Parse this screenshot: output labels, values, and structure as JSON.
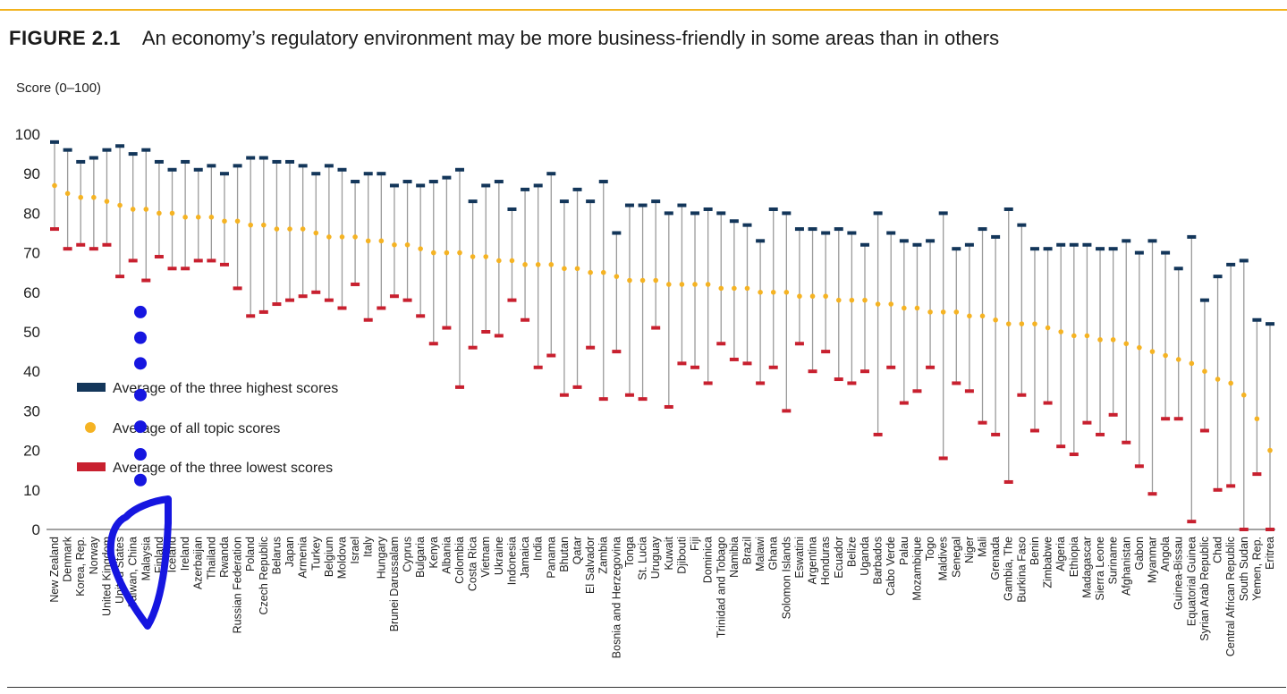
{
  "figure": {
    "label": "FIGURE 2.1",
    "title": "An economy’s regulatory environment may be more business-friendly in some areas than in others"
  },
  "colors": {
    "high": "#13365a",
    "avg": "#f5b323",
    "low": "#c8202f",
    "connector": "#9a9a9a",
    "annotation": "#1616e0"
  },
  "chart_data": {
    "type": "scatter",
    "title": "An economy’s regulatory environment may be more business-friendly in some areas than in others",
    "xlabel": "",
    "ylabel": "Score (0–100)",
    "ylim": [
      0,
      100
    ],
    "yticks": [
      0,
      10,
      20,
      30,
      40,
      50,
      60,
      70,
      80,
      90,
      100
    ],
    "grid": false,
    "legend": {
      "position": "left",
      "entries": [
        {
          "key": "high",
          "label": "Average of the three highest scores"
        },
        {
          "key": "avg",
          "label": "Average of all topic scores"
        },
        {
          "key": "low",
          "label": "Average of the three lowest scores"
        }
      ]
    },
    "categories": [
      "New Zealand",
      "Denmark",
      "Korea, Rep.",
      "Norway",
      "United Kingdom",
      "United States",
      "Taiwan, China",
      "Malaysia",
      "Finland",
      "Iceland",
      "Ireland",
      "Azerbaijan",
      "Thailand",
      "Rwanda",
      "Russian Federation",
      "Poland",
      "Czech Republic",
      "Belarus",
      "Japan",
      "Armenia",
      "Turkey",
      "Belgium",
      "Moldova",
      "Israel",
      "Italy",
      "Hungary",
      "Brunei Darussalam",
      "Cyprus",
      "Bulgaria",
      "Kenya",
      "Albania",
      "Colombia",
      "Costa Rica",
      "Vietnam",
      "Ukraine",
      "Indonesia",
      "Jamaica",
      "India",
      "Panama",
      "Bhutan",
      "Qatar",
      "El Salvador",
      "Zambia",
      "Bosnia and Herzegovina",
      "Tonga",
      "St. Lucia",
      "Uruguay",
      "Kuwait",
      "Djibouti",
      "Fiji",
      "Dominica",
      "Trinidad and Tobago",
      "Namibia",
      "Brazil",
      "Malawi",
      "Ghana",
      "Solomon Islands",
      "Eswatini",
      "Argentina",
      "Honduras",
      "Ecuador",
      "Belize",
      "Uganda",
      "Barbados",
      "Cabo Verde",
      "Palau",
      "Mozambique",
      "Togo",
      "Maldives",
      "Senegal",
      "Niger",
      "Mali",
      "Grenada",
      "Gambia, The",
      "Burkina Faso",
      "Benin",
      "Zimbabwe",
      "Algeria",
      "Ethiopia",
      "Madagascar",
      "Sierra Leone",
      "Suriname",
      "Afghanistan",
      "Gabon",
      "Myanmar",
      "Angola",
      "Guinea-Bissau",
      "Equatorial Guinea",
      "Syrian Arab Republic",
      "Chad",
      "Central African Republic",
      "South Sudan",
      "Yemen, Rep.",
      "Eritrea"
    ],
    "series": [
      {
        "name": "Average of the three highest scores",
        "key": "high",
        "values": [
          98,
          96,
          93,
          94,
          96,
          97,
          95,
          96,
          93,
          91,
          93,
          91,
          92,
          90,
          92,
          94,
          94,
          93,
          93,
          92,
          90,
          92,
          91,
          88,
          90,
          90,
          87,
          88,
          87,
          88,
          89,
          91,
          83,
          87,
          88,
          81,
          86,
          87,
          90,
          83,
          86,
          83,
          88,
          75,
          82,
          82,
          83,
          80,
          82,
          80,
          81,
          80,
          78,
          77,
          73,
          81,
          80,
          76,
          76,
          75,
          76,
          75,
          72,
          80,
          75,
          73,
          72,
          73,
          80,
          71,
          72,
          76,
          74,
          81,
          77,
          71,
          71,
          72,
          72,
          72,
          71,
          71,
          73,
          70,
          73,
          70,
          66,
          74,
          58,
          64,
          67,
          68,
          53,
          52
        ]
      },
      {
        "name": "Average of all topic scores",
        "key": "avg",
        "values": [
          87,
          85,
          84,
          84,
          83,
          82,
          81,
          81,
          80,
          80,
          79,
          79,
          79,
          78,
          78,
          77,
          77,
          76,
          76,
          76,
          75,
          74,
          74,
          74,
          73,
          73,
          72,
          72,
          71,
          70,
          70,
          70,
          69,
          69,
          68,
          68,
          67,
          67,
          67,
          66,
          66,
          65,
          65,
          64,
          63,
          63,
          63,
          62,
          62,
          62,
          62,
          61,
          61,
          61,
          60,
          60,
          60,
          59,
          59,
          59,
          58,
          58,
          58,
          57,
          57,
          56,
          56,
          55,
          55,
          55,
          54,
          54,
          53,
          52,
          52,
          52,
          51,
          50,
          49,
          49,
          48,
          48,
          47,
          46,
          45,
          44,
          43,
          42,
          40,
          38,
          37,
          34,
          28,
          20
        ]
      },
      {
        "name": "Average of the three lowest scores",
        "key": "low",
        "values": [
          76,
          71,
          72,
          71,
          72,
          64,
          68,
          63,
          69,
          66,
          66,
          68,
          68,
          67,
          61,
          54,
          55,
          57,
          58,
          59,
          60,
          58,
          56,
          62,
          53,
          56,
          59,
          58,
          54,
          47,
          51,
          36,
          46,
          50,
          49,
          58,
          53,
          41,
          44,
          34,
          36,
          46,
          33,
          45,
          34,
          33,
          51,
          31,
          42,
          41,
          37,
          47,
          43,
          42,
          37,
          41,
          30,
          47,
          40,
          45,
          38,
          37,
          40,
          24,
          41,
          32,
          35,
          41,
          18,
          37,
          35,
          27,
          24,
          12,
          34,
          25,
          32,
          21,
          19,
          27,
          24,
          29,
          22,
          16,
          9,
          28,
          28,
          2,
          25,
          10,
          11,
          0,
          14,
          0
        ]
      }
    ],
    "annotation_dots": [
      55,
      48.5,
      42,
      34,
      26,
      19,
      12.5
    ]
  }
}
